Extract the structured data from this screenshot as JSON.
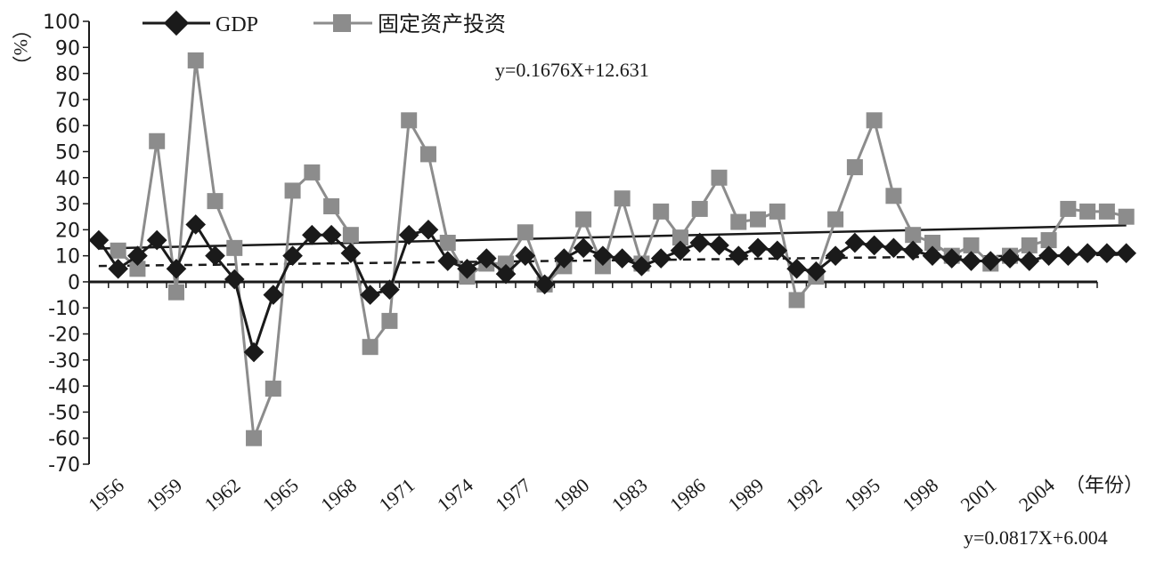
{
  "chart_data": {
    "type": "line",
    "title": "",
    "ylabel": "（%）",
    "xlabel": "（年份）",
    "ylim": [
      -70,
      100
    ],
    "ytick_step": 10,
    "x_start": 1955,
    "x_end": 2006,
    "xtick_labels": [
      "1956",
      "1959",
      "1962",
      "1965",
      "1968",
      "1971",
      "1974",
      "1977",
      "1980",
      "1983",
      "1986",
      "1989",
      "1992",
      "1995",
      "1998",
      "2001",
      "2004"
    ],
    "legend_position": "top-left",
    "grid": false,
    "series": [
      {
        "name": "GDP",
        "color": "#1a1a1a",
        "marker": "diamond",
        "values": [
          16,
          5,
          10,
          16,
          5,
          22,
          10,
          1,
          -27,
          -5,
          10,
          18,
          18,
          11,
          -5,
          -3,
          18,
          20,
          8,
          5,
          9,
          3,
          10,
          -1,
          9,
          13,
          10,
          9,
          6,
          9,
          12,
          15,
          14,
          10,
          13,
          12,
          5,
          4,
          10,
          15,
          14,
          13,
          12,
          10,
          9,
          8,
          8,
          9,
          8,
          10,
          10,
          11,
          11,
          11
        ]
      },
      {
        "name": "固定资产投资",
        "color": "#8c8c8c",
        "marker": "square",
        "values": [
          null,
          12,
          5,
          54,
          -4,
          85,
          31,
          13,
          -60,
          -41,
          35,
          42,
          29,
          18,
          -25,
          -15,
          62,
          49,
          15,
          2,
          7,
          7,
          19,
          -1,
          6,
          24,
          6,
          32,
          7,
          27,
          17,
          28,
          40,
          23,
          24,
          27,
          -7,
          2,
          24,
          44,
          62,
          33,
          18,
          15,
          10,
          14,
          7,
          10,
          14,
          16,
          28,
          27,
          27,
          25
        ]
      }
    ],
    "trendlines": [
      {
        "equation": "y=0.1676X+12.631",
        "slope": 0.1676,
        "intercept": 12.631,
        "style": "solid",
        "color": "#1a1a1a"
      },
      {
        "equation": "y=0.0817X+6.004",
        "slope": 0.0817,
        "intercept": 6.004,
        "style": "dashed",
        "color": "#1a1a1a"
      }
    ]
  }
}
